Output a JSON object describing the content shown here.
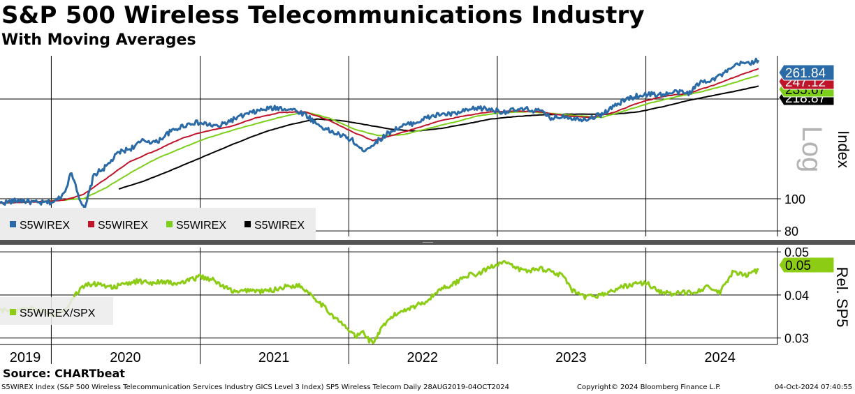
{
  "title": "S&P 500 Wireless Telecommunications Industry",
  "subtitle": "With Moving Averages",
  "source": "Source: CHARTbeat",
  "footer": {
    "description": "S5WIREX Index (S&P 500 Wireless Telecommunication Services Industry GICS Level 3 Index) SP5 Wireless Telecom  Daily 28AUG2019-04OCT2024",
    "copyright": "Copyright© 2024 Bloomberg Finance L.P.",
    "timestamp": "04-Oct-2024 07:40:55"
  },
  "colors": {
    "price": "#2a6aa6",
    "ma_short": "#c0142a",
    "ma_medium": "#7ccf1a",
    "ma_long": "#000000",
    "ratio": "#8ccc14",
    "divider": "#555555"
  },
  "chart_data": [
    {
      "type": "line",
      "panel": "upper",
      "y_axis_label": "Index",
      "scale_label": "Log",
      "y_scale": "log",
      "ylim": [
        77,
        270
      ],
      "yticks": [
        "200",
        "100",
        "80"
      ],
      "ytick_values": [
        200,
        100,
        80
      ],
      "xlim": [
        "2019-08-28",
        "2024-10-04"
      ],
      "x_tick_labels": [
        "2019",
        "2020",
        "2021",
        "2022",
        "2023",
        "2024"
      ],
      "x_tick_positions": [
        "2019-10-15",
        "2020-07-01",
        "2021-07-01",
        "2022-07-01",
        "2023-07-01",
        "2024-07-01"
      ],
      "year_dividers": [
        "2020-01-01",
        "2021-01-01",
        "2022-01-01",
        "2023-01-01",
        "2024-01-01"
      ],
      "grid": true,
      "legend_position": "bottom-left",
      "series": [
        {
          "name": "S5WIREX",
          "role": "price",
          "last_label": "261.84",
          "points": [
            [
              "2019-08-28",
              97
            ],
            [
              "2019-10-15",
              99
            ],
            [
              "2019-12-01",
              97
            ],
            [
              "2020-01-10",
              98
            ],
            [
              "2020-02-01",
              104
            ],
            [
              "2020-02-20",
              120
            ],
            [
              "2020-03-10",
              101
            ],
            [
              "2020-03-23",
              92
            ],
            [
              "2020-04-15",
              118
            ],
            [
              "2020-05-15",
              125
            ],
            [
              "2020-06-15",
              138
            ],
            [
              "2020-07-15",
              142
            ],
            [
              "2020-08-15",
              150
            ],
            [
              "2020-09-15",
              148
            ],
            [
              "2020-10-15",
              158
            ],
            [
              "2020-11-15",
              165
            ],
            [
              "2020-12-15",
              170
            ],
            [
              "2021-01-15",
              168
            ],
            [
              "2021-02-15",
              165
            ],
            [
              "2021-03-15",
              172
            ],
            [
              "2021-04-15",
              178
            ],
            [
              "2021-05-15",
              183
            ],
            [
              "2021-06-15",
              187
            ],
            [
              "2021-07-15",
              188
            ],
            [
              "2021-08-15",
              186
            ],
            [
              "2021-09-15",
              180
            ],
            [
              "2021-10-15",
              168
            ],
            [
              "2021-11-15",
              160
            ],
            [
              "2021-12-15",
              155
            ],
            [
              "2022-01-10",
              150
            ],
            [
              "2022-02-01",
              140
            ],
            [
              "2022-02-20",
              143
            ],
            [
              "2022-03-15",
              150
            ],
            [
              "2022-04-15",
              160
            ],
            [
              "2022-05-15",
              166
            ],
            [
              "2022-06-15",
              170
            ],
            [
              "2022-07-15",
              176
            ],
            [
              "2022-08-15",
              180
            ],
            [
              "2022-09-15",
              180
            ],
            [
              "2022-10-15",
              184
            ],
            [
              "2022-11-15",
              188
            ],
            [
              "2022-12-15",
              186
            ],
            [
              "2023-01-15",
              183
            ],
            [
              "2023-02-15",
              185
            ],
            [
              "2023-03-15",
              186
            ],
            [
              "2023-04-15",
              184
            ],
            [
              "2023-05-15",
              175
            ],
            [
              "2023-06-15",
              178
            ],
            [
              "2023-07-15",
              174
            ],
            [
              "2023-08-15",
              175
            ],
            [
              "2023-09-15",
              180
            ],
            [
              "2023-10-15",
              190
            ],
            [
              "2023-11-15",
              200
            ],
            [
              "2023-12-15",
              205
            ],
            [
              "2024-01-15",
              207
            ],
            [
              "2024-02-15",
              206
            ],
            [
              "2024-03-15",
              210
            ],
            [
              "2024-04-15",
              208
            ],
            [
              "2024-05-15",
              225
            ],
            [
              "2024-06-15",
              230
            ],
            [
              "2024-07-15",
              240
            ],
            [
              "2024-08-15",
              255
            ],
            [
              "2024-09-15",
              258
            ],
            [
              "2024-10-04",
              261.84
            ]
          ]
        },
        {
          "name": "S5WIREX",
          "role": "moving average (red)",
          "last_label": "247.12",
          "points": [
            [
              "2019-08-28",
              97
            ],
            [
              "2019-12-01",
              98
            ],
            [
              "2020-02-01",
              99
            ],
            [
              "2020-03-20",
              103
            ],
            [
              "2020-05-15",
              115
            ],
            [
              "2020-07-15",
              130
            ],
            [
              "2020-09-15",
              140
            ],
            [
              "2020-11-15",
              152
            ],
            [
              "2021-01-15",
              160
            ],
            [
              "2021-03-15",
              165
            ],
            [
              "2021-05-15",
              175
            ],
            [
              "2021-07-15",
              182
            ],
            [
              "2021-09-15",
              183
            ],
            [
              "2021-11-15",
              172
            ],
            [
              "2022-01-15",
              158
            ],
            [
              "2022-03-01",
              150
            ],
            [
              "2022-04-15",
              155
            ],
            [
              "2022-06-15",
              163
            ],
            [
              "2022-08-15",
              172
            ],
            [
              "2022-10-15",
              178
            ],
            [
              "2022-12-15",
              183
            ],
            [
              "2023-02-15",
              184
            ],
            [
              "2023-04-15",
              183
            ],
            [
              "2023-06-15",
              178
            ],
            [
              "2023-08-15",
              176
            ],
            [
              "2023-10-15",
              182
            ],
            [
              "2023-12-15",
              195
            ],
            [
              "2024-02-15",
              204
            ],
            [
              "2024-04-15",
              208
            ],
            [
              "2024-06-15",
              220
            ],
            [
              "2024-08-15",
              235
            ],
            [
              "2024-10-04",
              247.12
            ]
          ]
        },
        {
          "name": "S5WIREX",
          "role": "moving average (green)",
          "last_label": "235.67",
          "points": [
            [
              "2019-08-28",
              97
            ],
            [
              "2019-12-01",
              98
            ],
            [
              "2020-03-20",
              100
            ],
            [
              "2020-05-15",
              108
            ],
            [
              "2020-07-15",
              120
            ],
            [
              "2020-09-15",
              132
            ],
            [
              "2020-11-15",
              142
            ],
            [
              "2021-01-15",
              152
            ],
            [
              "2021-03-15",
              160
            ],
            [
              "2021-05-15",
              168
            ],
            [
              "2021-07-15",
              176
            ],
            [
              "2021-09-15",
              183
            ],
            [
              "2021-11-15",
              175
            ],
            [
              "2022-01-15",
              162
            ],
            [
              "2022-03-15",
              155
            ],
            [
              "2022-05-15",
              156
            ],
            [
              "2022-07-15",
              163
            ],
            [
              "2022-09-15",
              170
            ],
            [
              "2022-11-15",
              178
            ],
            [
              "2023-01-15",
              182
            ],
            [
              "2023-03-15",
              183
            ],
            [
              "2023-05-15",
              181
            ],
            [
              "2023-07-15",
              178
            ],
            [
              "2023-09-15",
              176
            ],
            [
              "2023-11-15",
              185
            ],
            [
              "2024-01-15",
              195
            ],
            [
              "2024-03-15",
              203
            ],
            [
              "2024-05-15",
              210
            ],
            [
              "2024-07-15",
              220
            ],
            [
              "2024-10-04",
              235.67
            ]
          ]
        },
        {
          "name": "S5WIREX",
          "role": "moving average (black)",
          "last_label": "218.87",
          "points": [
            [
              "2020-06-15",
              107
            ],
            [
              "2020-08-15",
              113
            ],
            [
              "2020-10-15",
              121
            ],
            [
              "2020-12-15",
              130
            ],
            [
              "2021-02-15",
              140
            ],
            [
              "2021-04-15",
              150
            ],
            [
              "2021-06-15",
              160
            ],
            [
              "2021-08-15",
              168
            ],
            [
              "2021-10-15",
              174
            ],
            [
              "2021-12-15",
              172
            ],
            [
              "2022-02-15",
              167
            ],
            [
              "2022-04-15",
              162
            ],
            [
              "2022-06-15",
              160
            ],
            [
              "2022-08-15",
              163
            ],
            [
              "2022-10-15",
              168
            ],
            [
              "2022-12-15",
              174
            ],
            [
              "2023-02-15",
              177
            ],
            [
              "2023-04-15",
              179
            ],
            [
              "2023-06-15",
              180
            ],
            [
              "2023-08-15",
              180
            ],
            [
              "2023-10-15",
              180
            ],
            [
              "2023-12-15",
              183
            ],
            [
              "2024-02-15",
              190
            ],
            [
              "2024-04-15",
              198
            ],
            [
              "2024-06-15",
              205
            ],
            [
              "2024-08-15",
              212
            ],
            [
              "2024-10-04",
              218.87
            ]
          ]
        }
      ]
    },
    {
      "type": "line",
      "panel": "lower",
      "y_axis_label": "Rel. SP5",
      "y_scale": "linear",
      "ylim": [
        0.0285,
        0.051
      ],
      "yticks": [
        "0.05",
        "0.04",
        "0.03"
      ],
      "ytick_values": [
        0.05,
        0.04,
        0.03
      ],
      "xlim": [
        "2019-08-28",
        "2024-10-04"
      ],
      "grid": true,
      "legend_position": "bottom-left",
      "series": [
        {
          "name": "S5WIREX/SPX",
          "last_label": "0.05",
          "points": [
            [
              "2019-08-28",
              0.0365
            ],
            [
              "2019-10-01",
              0.0362
            ],
            [
              "2019-11-15",
              0.0368
            ],
            [
              "2020-01-10",
              0.0355
            ],
            [
              "2020-01-25",
              0.0362
            ],
            [
              "2020-02-10",
              0.037
            ],
            [
              "2020-02-25",
              0.0395
            ],
            [
              "2020-03-15",
              0.0415
            ],
            [
              "2020-04-01",
              0.0425
            ],
            [
              "2020-05-01",
              0.0425
            ],
            [
              "2020-06-01",
              0.0418
            ],
            [
              "2020-07-01",
              0.0425
            ],
            [
              "2020-08-01",
              0.0432
            ],
            [
              "2020-09-01",
              0.0428
            ],
            [
              "2020-10-01",
              0.0432
            ],
            [
              "2020-11-01",
              0.0425
            ],
            [
              "2020-12-01",
              0.0432
            ],
            [
              "2021-01-01",
              0.0443
            ],
            [
              "2021-02-01",
              0.0435
            ],
            [
              "2021-03-01",
              0.0418
            ],
            [
              "2021-04-01",
              0.0405
            ],
            [
              "2021-05-01",
              0.0412
            ],
            [
              "2021-06-01",
              0.0408
            ],
            [
              "2021-07-01",
              0.0412
            ],
            [
              "2021-08-01",
              0.042
            ],
            [
              "2021-09-01",
              0.0422
            ],
            [
              "2021-10-01",
              0.0402
            ],
            [
              "2021-11-01",
              0.0372
            ],
            [
              "2021-12-01",
              0.0345
            ],
            [
              "2022-01-01",
              0.0318
            ],
            [
              "2022-01-20",
              0.0303
            ],
            [
              "2022-02-05",
              0.0315
            ],
            [
              "2022-02-20",
              0.0295
            ],
            [
              "2022-03-05",
              0.0292
            ],
            [
              "2022-03-20",
              0.0318
            ],
            [
              "2022-04-15",
              0.0348
            ],
            [
              "2022-05-15",
              0.0365
            ],
            [
              "2022-06-15",
              0.0375
            ],
            [
              "2022-07-15",
              0.0388
            ],
            [
              "2022-08-15",
              0.0415
            ],
            [
              "2022-09-15",
              0.0425
            ],
            [
              "2022-10-15",
              0.0445
            ],
            [
              "2022-11-15",
              0.0448
            ],
            [
              "2022-12-15",
              0.0465
            ],
            [
              "2023-01-15",
              0.0478
            ],
            [
              "2023-02-15",
              0.0462
            ],
            [
              "2023-03-15",
              0.0455
            ],
            [
              "2023-04-15",
              0.0462
            ],
            [
              "2023-05-15",
              0.0455
            ],
            [
              "2023-06-15",
              0.0442
            ],
            [
              "2023-07-01",
              0.0412
            ],
            [
              "2023-08-01",
              0.0395
            ],
            [
              "2023-09-01",
              0.0398
            ],
            [
              "2023-10-01",
              0.0405
            ],
            [
              "2023-11-01",
              0.0418
            ],
            [
              "2023-12-01",
              0.0425
            ],
            [
              "2024-01-01",
              0.0428
            ],
            [
              "2024-02-01",
              0.041
            ],
            [
              "2024-03-01",
              0.0402
            ],
            [
              "2024-04-01",
              0.0405
            ],
            [
              "2024-05-01",
              0.0408
            ],
            [
              "2024-06-01",
              0.0418
            ],
            [
              "2024-07-01",
              0.0405
            ],
            [
              "2024-08-01",
              0.0452
            ],
            [
              "2024-09-01",
              0.0445
            ],
            [
              "2024-10-04",
              0.0458
            ]
          ]
        }
      ]
    }
  ]
}
